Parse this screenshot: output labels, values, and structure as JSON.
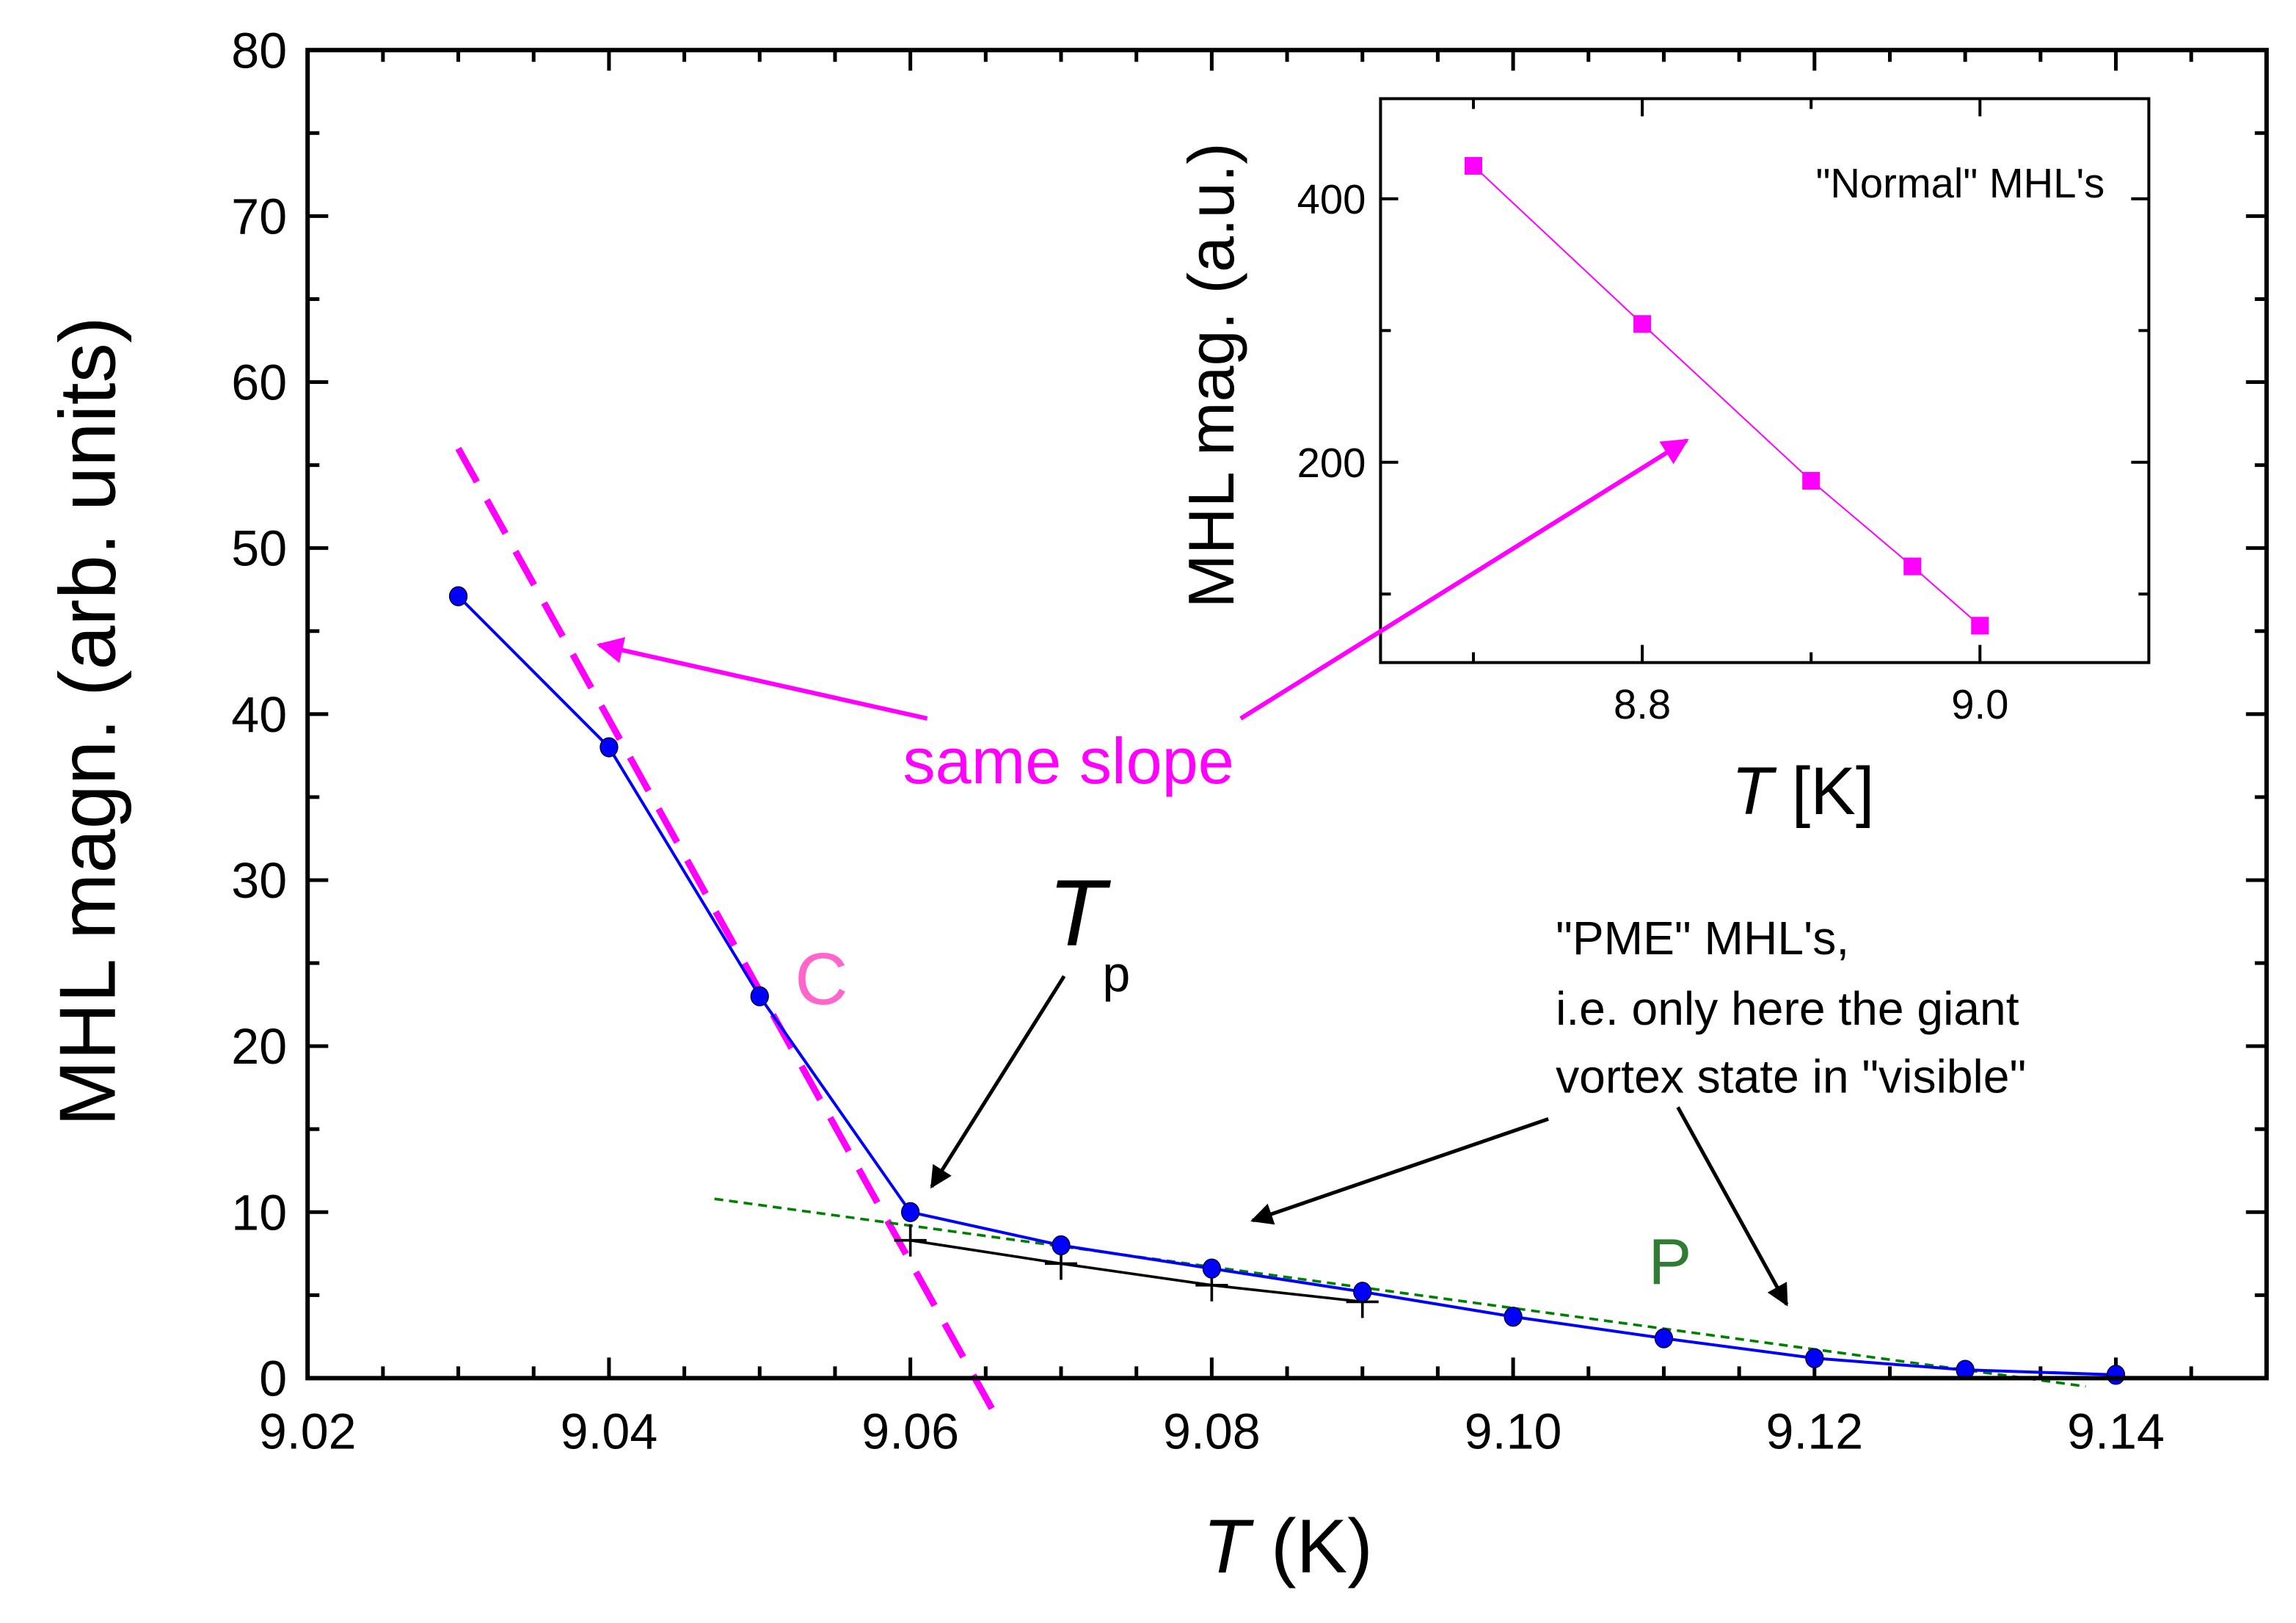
{
  "chart_data": [
    {
      "type": "line",
      "title": "",
      "xlabel_italic": "T",
      "xlabel_rest": " (K)",
      "ylabel": "MHL magn. (arb. units)",
      "xlim": [
        9.02,
        9.15
      ],
      "ylim": [
        0,
        80
      ],
      "xticks": [
        "9.02",
        "9.04",
        "9.06",
        "9.08",
        "9.10",
        "9.12",
        "9.14"
      ],
      "yticks": [
        "0",
        "10",
        "20",
        "30",
        "40",
        "50",
        "60",
        "70",
        "80"
      ],
      "grid": false,
      "series": [
        {
          "name": "MHL magnitude",
          "color": "#0000ff",
          "marker": "circle",
          "x": [
            9.03,
            9.04,
            9.05,
            9.06,
            9.07,
            9.08,
            9.09,
            9.1,
            9.11,
            9.12,
            9.13,
            9.14
          ],
          "y": [
            47.1,
            38.0,
            23.0,
            10.0,
            8.0,
            6.6,
            5.2,
            3.7,
            2.4,
            1.2,
            0.5,
            0.2
          ]
        },
        {
          "name": "crosses",
          "color": "#000000",
          "marker": "cross",
          "x": [
            9.06,
            9.07,
            9.08,
            9.09
          ],
          "y": [
            8.3,
            6.9,
            5.6,
            4.6
          ]
        },
        {
          "name": "C slope line",
          "color": "#ff00ff",
          "style": "dashed",
          "x": [
            9.03,
            9.066
          ],
          "y": [
            56.0,
            -2.8
          ]
        },
        {
          "name": "P fit line",
          "color": "#008000",
          "style": "dotted",
          "x": [
            9.047,
            9.138
          ],
          "y": [
            10.8,
            -0.5
          ]
        }
      ],
      "annotations": {
        "same_slope": "same slope",
        "c_label": "C",
        "p_label": "P",
        "tp_main": "T",
        "tp_sub": "p",
        "pme_lines": [
          "\"PME\" MHL's,",
          "i.e. only here the giant",
          "vortex state in \"visible\""
        ]
      },
      "colors": {
        "magenta": "#ff00ff",
        "c_pink": "#ff66cc",
        "p_green": "#2e7d32"
      }
    },
    {
      "type": "line",
      "title": "\"Normal\" MHL's",
      "xlabel_italic": "T",
      "xlabel_rest": " [K]",
      "ylabel": "MHL mag. (a.u.)",
      "xlim": [
        8.645,
        9.1
      ],
      "ylim": [
        48,
        476
      ],
      "xticks": [
        "8.8",
        "9.0"
      ],
      "yticks": [
        "200",
        "400"
      ],
      "series": [
        {
          "name": "Normal MHL",
          "color": "#ff00ff",
          "marker": "square",
          "x": [
            8.7,
            8.8,
            8.9,
            8.96,
            9.0
          ],
          "y": [
            425,
            305,
            186,
            121,
            76
          ]
        }
      ]
    }
  ]
}
